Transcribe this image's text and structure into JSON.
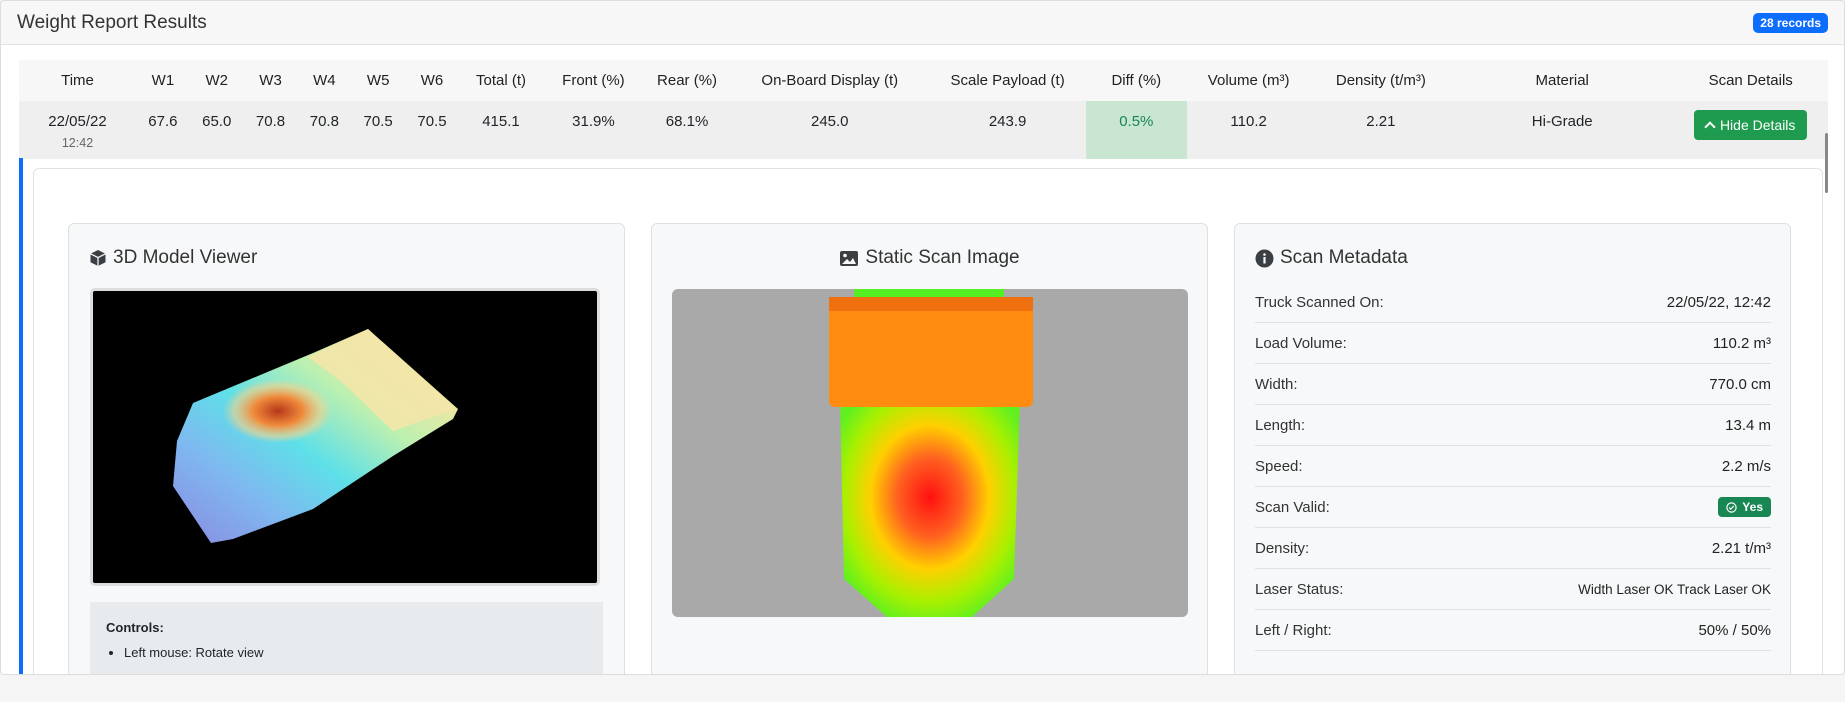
{
  "header": {
    "title": "Weight Report Results",
    "records_badge": "28 records"
  },
  "table": {
    "columns": [
      "Time",
      "W1",
      "W2",
      "W3",
      "W4",
      "W5",
      "W6",
      "Total (t)",
      "Front (%)",
      "Rear (%)",
      "On-Board Display (t)",
      "Scale Payload (t)",
      "Diff (%)",
      "Volume (m³)",
      "Density (t/m³)",
      "Material",
      "Scan Details"
    ],
    "row": {
      "date": "22/05/22",
      "time": "12:42",
      "w1": "67.6",
      "w2": "65.0",
      "w3": "70.8",
      "w4": "70.8",
      "w5": "70.5",
      "w6": "70.5",
      "total": "415.1",
      "front": "31.9%",
      "rear": "68.1%",
      "onboard": "245.0",
      "scale": "243.9",
      "diff": "0.5%",
      "volume": "110.2",
      "density": "2.21",
      "material": "Hi-Grade",
      "hide_button": "Hide Details"
    }
  },
  "viewer": {
    "title": "3D Model Viewer",
    "controls_heading": "Controls:",
    "controls": [
      "Left mouse: Rotate view"
    ]
  },
  "static_scan": {
    "title": "Static Scan Image"
  },
  "metadata": {
    "title": "Scan Metadata",
    "rows": [
      {
        "label": "Truck Scanned On:",
        "value": "22/05/22, 12:42"
      },
      {
        "label": "Load Volume:",
        "value": "110.2 m³"
      },
      {
        "label": "Width:",
        "value": "770.0 cm"
      },
      {
        "label": "Length:",
        "value": "13.4 m"
      },
      {
        "label": "Speed:",
        "value": "2.2 m/s"
      },
      {
        "label": "Scan Valid:",
        "value": "Yes"
      },
      {
        "label": "Density:",
        "value": "2.21 t/m³"
      },
      {
        "label": "Laser Status:",
        "value": "Width Laser OK Track Laser OK"
      },
      {
        "label": "Left / Right:",
        "value": "50% / 50%"
      }
    ]
  },
  "colors": {
    "accent": "#0d6efd",
    "success": "#198754",
    "button": "#1e9b4e"
  }
}
